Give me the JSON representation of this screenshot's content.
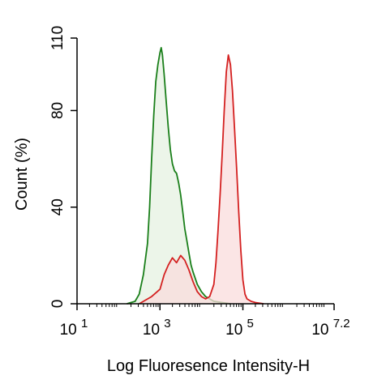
{
  "chart_data": {
    "type": "area",
    "xlabel": "Log Fluoresence Intensity-H",
    "ylabel": "Count  (%)",
    "xscale": "log",
    "xlim_log10": [
      1,
      7.2
    ],
    "ylim": [
      0,
      110
    ],
    "x_ticks": [
      {
        "base": "10",
        "exp": "1",
        "log": 1
      },
      {
        "base": "10",
        "exp": "3",
        "log": 3
      },
      {
        "base": "10",
        "exp": "5",
        "log": 5
      },
      {
        "base": "10",
        "exp": "7.2",
        "log": 7.2
      }
    ],
    "y_ticks": [
      "0",
      "40",
      "80",
      "110"
    ],
    "y_tick_values": [
      0,
      40,
      80,
      110
    ],
    "grid": false,
    "legend": "none",
    "series": [
      {
        "color": "#1a7f1a",
        "fill": "#e6f2e2",
        "log_x": [
          2.2,
          2.4,
          2.5,
          2.6,
          2.7,
          2.75,
          2.8,
          2.85,
          2.9,
          2.95,
          3.0,
          3.03,
          3.06,
          3.1,
          3.15,
          3.2,
          3.25,
          3.3,
          3.35,
          3.4,
          3.45,
          3.5,
          3.55,
          3.6,
          3.65,
          3.7,
          3.75,
          3.8,
          3.9,
          4.0,
          4.1,
          4.2,
          4.3,
          4.5,
          4.7
        ],
        "values": [
          0,
          1,
          4,
          12,
          25,
          40,
          60,
          78,
          92,
          99,
          104,
          106,
          103,
          95,
          84,
          73,
          64,
          58,
          55,
          54,
          50,
          45,
          38,
          31,
          26,
          21,
          16,
          13,
          8,
          5,
          3,
          2,
          1,
          0.5,
          0
        ]
      },
      {
        "color": "#d42020",
        "fill": "#f9dcdc",
        "log_x": [
          2.5,
          2.8,
          3.0,
          3.1,
          3.2,
          3.3,
          3.4,
          3.5,
          3.6,
          3.7,
          3.8,
          3.9,
          4.0,
          4.1,
          4.2,
          4.3,
          4.35,
          4.4,
          4.45,
          4.5,
          4.55,
          4.6,
          4.65,
          4.7,
          4.75,
          4.8,
          4.85,
          4.9,
          4.95,
          5.0,
          5.05,
          5.1,
          5.2,
          5.3,
          5.5
        ],
        "values": [
          0,
          3,
          6,
          12,
          16,
          19,
          17,
          20,
          18,
          14,
          9,
          5,
          3,
          2,
          3,
          8,
          17,
          30,
          45,
          62,
          80,
          96,
          103,
          99,
          88,
          72,
          56,
          38,
          22,
          10,
          4,
          2,
          1,
          0.5,
          0
        ]
      }
    ]
  }
}
